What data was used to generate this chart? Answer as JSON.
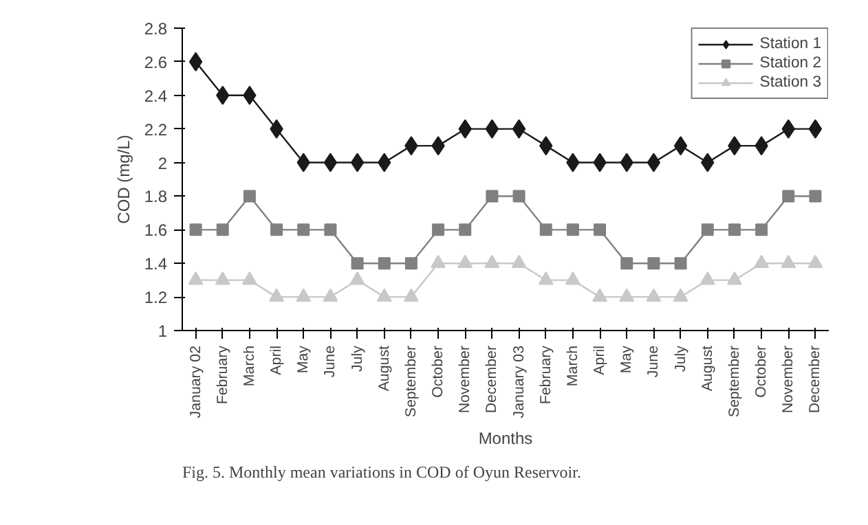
{
  "chart_data": {
    "type": "line",
    "ylabel": "COD (mg/L)",
    "xlabel": "Months",
    "categories": [
      "January 02",
      "February",
      "March",
      "April",
      "May",
      "June",
      "July",
      "August",
      "September",
      "October",
      "November",
      "December",
      "January 03",
      "February",
      "March",
      "April",
      "May",
      "June",
      "July",
      "August",
      "September",
      "October",
      "November",
      "December"
    ],
    "series": [
      {
        "name": "Station 1",
        "color": "#1a1a1a",
        "marker": "diamond",
        "values": [
          2.6,
          2.4,
          2.4,
          2.2,
          2.0,
          2.0,
          2.0,
          2.0,
          2.1,
          2.1,
          2.2,
          2.2,
          2.2,
          2.1,
          2.0,
          2.0,
          2.0,
          2.0,
          2.1,
          2.0,
          2.1,
          2.1,
          2.2,
          2.2
        ]
      },
      {
        "name": "Station 2",
        "color": "#808080",
        "marker": "square",
        "values": [
          1.6,
          1.6,
          1.8,
          1.6,
          1.6,
          1.6,
          1.4,
          1.4,
          1.4,
          1.6,
          1.6,
          1.8,
          1.8,
          1.6,
          1.6,
          1.6,
          1.4,
          1.4,
          1.4,
          1.6,
          1.6,
          1.6,
          1.8,
          1.8
        ]
      },
      {
        "name": "Station 3",
        "color": "#c8c8c8",
        "marker": "triangle",
        "values": [
          1.3,
          1.3,
          1.3,
          1.2,
          1.2,
          1.2,
          1.3,
          1.2,
          1.2,
          1.4,
          1.4,
          1.4,
          1.4,
          1.3,
          1.3,
          1.2,
          1.2,
          1.2,
          1.2,
          1.3,
          1.3,
          1.4,
          1.4,
          1.4
        ]
      }
    ],
    "ylim": [
      1,
      2.8
    ],
    "yticks": [
      1,
      1.2,
      1.4,
      1.6,
      1.8,
      2,
      2.2,
      2.4,
      2.6,
      2.8
    ],
    "grid": false,
    "legend": "top right",
    "annotations": [
      "Fig. 5. Monthly mean variations in COD of Oyun Reservoir."
    ]
  }
}
